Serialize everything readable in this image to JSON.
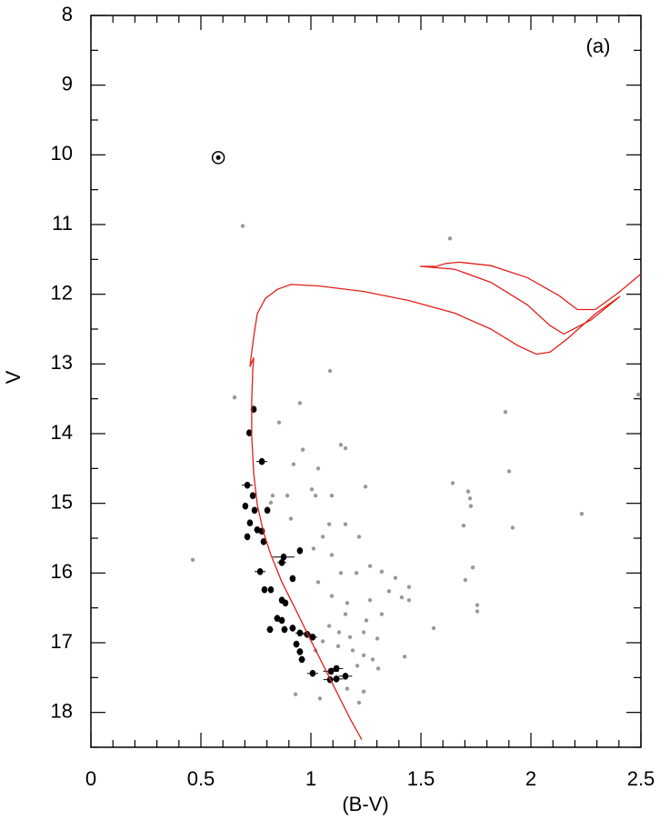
{
  "chart_data": {
    "type": "scatter",
    "xlabel": "(B-V)",
    "ylabel": "V",
    "annotation": "(a)",
    "xlim": [
      0,
      2.5
    ],
    "ylim": [
      18.5,
      8
    ],
    "xticks": [
      0,
      0.5,
      1,
      1.5,
      2,
      2.5
    ],
    "yticks": [
      8,
      9,
      10,
      11,
      12,
      13,
      14,
      15,
      16,
      17,
      18
    ],
    "series": [
      {
        "marker": "dot",
        "color": "#999999",
        "x": [
          0.69,
          1.632,
          1.087,
          0.653,
          0.95,
          2.488,
          1.884,
          0.855,
          1.136,
          1.157,
          0.963,
          1.901,
          1.033,
          1.248,
          0.921,
          1.645,
          1.715,
          1.723,
          1.727,
          1.004,
          0.893,
          1.021,
          0.826,
          1.095,
          0.818,
          1.694,
          1.917,
          2.231,
          0.909,
          1.083,
          1.157,
          1.054,
          1.219,
          0.463,
          1.012,
          1.095,
          1.736,
          1.269,
          1.136,
          1.033,
          1.207,
          1.322,
          1.384,
          1.702,
          1.446,
          1.355,
          1.413,
          1.269,
          1.095,
          1.165,
          1.446,
          1.756,
          1.756,
          1.157,
          1.322,
          1.252,
          1.083,
          1.558,
          1.24,
          1.128,
          1.178,
          1.302,
          1.054,
          1.124,
          1.426,
          1.19,
          1.24,
          1.281,
          1.211,
          1.306,
          1.021,
          1.24,
          1.165,
          1.219,
          1.041,
          0.93
        ],
        "values": [
          11.02,
          11.2,
          13.1,
          13.48,
          13.56,
          13.44,
          13.69,
          13.84,
          14.16,
          14.21,
          14.23,
          14.54,
          14.5,
          14.76,
          14.44,
          14.71,
          14.83,
          14.93,
          15.04,
          14.8,
          14.89,
          14.89,
          14.89,
          14.89,
          14.99,
          15.32,
          15.35,
          15.15,
          15.22,
          15.3,
          15.3,
          15.48,
          15.48,
          15.81,
          15.65,
          15.74,
          15.92,
          15.9,
          16.0,
          16.13,
          16.0,
          15.98,
          16.07,
          16.1,
          16.2,
          16.26,
          16.35,
          16.39,
          16.33,
          16.43,
          16.39,
          16.46,
          16.55,
          16.59,
          16.59,
          16.68,
          16.76,
          16.79,
          16.85,
          16.85,
          16.92,
          16.94,
          16.98,
          17.05,
          17.2,
          17.11,
          17.18,
          17.24,
          17.33,
          17.37,
          17.11,
          17.7,
          17.66,
          17.86,
          17.8,
          17.74
        ]
      },
      {
        "marker": "dot-err",
        "color": "#000000",
        "x": [
          0.74,
          0.72,
          0.777,
          0.711,
          0.736,
          0.702,
          0.744,
          0.802,
          0.723,
          0.756,
          0.777,
          0.711,
          0.785,
          0.95,
          0.876,
          0.868,
          0.769,
          0.917,
          0.789,
          0.818,
          0.868,
          0.884,
          0.847,
          0.868,
          0.814,
          0.88,
          0.917,
          0.95,
          0.983,
          1.008,
          0.934,
          0.95,
          0.959,
          1.008,
          1.091,
          1.116,
          1.157,
          1.087,
          1.116
        ],
        "xerr": [
          0.01,
          0.01,
          0.025,
          0.025,
          0.01,
          0.01,
          0.01,
          0.01,
          0.01,
          0.015,
          0.01,
          0.01,
          0.01,
          0.01,
          0.05,
          0.02,
          0.025,
          0.01,
          0.01,
          0.01,
          0.01,
          0.01,
          0.015,
          0.01,
          0.015,
          0.015,
          0.015,
          0.02,
          0.02,
          0.02,
          0.015,
          0.015,
          0.015,
          0.025,
          0.035,
          0.03,
          0.03,
          0.03,
          0.03
        ],
        "values": [
          13.65,
          13.99,
          14.4,
          14.74,
          14.89,
          15.04,
          15.1,
          15.1,
          15.28,
          15.38,
          15.4,
          15.48,
          15.55,
          15.68,
          15.77,
          15.85,
          15.98,
          16.08,
          16.24,
          16.24,
          16.39,
          16.43,
          16.65,
          16.68,
          16.81,
          16.81,
          16.79,
          16.86,
          16.88,
          16.92,
          17.02,
          17.13,
          17.24,
          17.44,
          17.41,
          17.37,
          17.48,
          17.53,
          17.52
        ]
      },
      {
        "marker": "sun",
        "color": "#000000",
        "x": [
          0.579
        ],
        "values": [
          10.04
        ]
      },
      {
        "marker": "line",
        "color": "#e0201b",
        "x": [
          1.231,
          1.178,
          1.116,
          1.054,
          0.992,
          0.93,
          0.868,
          0.818,
          0.785,
          0.756,
          0.74,
          0.731,
          0.731,
          0.736,
          0.74,
          0.723,
          0.727,
          0.74,
          0.756,
          0.793,
          0.847,
          0.909,
          1.033,
          1.24,
          1.446,
          1.653,
          1.818,
          1.942,
          2.025,
          2.087,
          2.169,
          2.293,
          2.405,
          2.273,
          2.149,
          2.087,
          1.983,
          1.818,
          1.653,
          1.496,
          1.57,
          1.612,
          1.674,
          1.818,
          1.983,
          2.128,
          2.211,
          2.293,
          2.397,
          2.5
        ],
        "values": [
          18.39,
          18.09,
          17.7,
          17.31,
          16.92,
          16.52,
          16.13,
          15.74,
          15.42,
          15.02,
          14.57,
          14.04,
          13.52,
          13.07,
          12.91,
          13.04,
          12.93,
          12.61,
          12.28,
          12.06,
          11.93,
          11.86,
          11.88,
          11.96,
          12.09,
          12.27,
          12.5,
          12.74,
          12.86,
          12.83,
          12.63,
          12.28,
          12.03,
          12.37,
          12.57,
          12.45,
          12.15,
          11.83,
          11.64,
          11.6,
          11.6,
          11.56,
          11.54,
          11.59,
          11.76,
          12.02,
          12.22,
          12.22,
          11.98,
          11.71
        ]
      }
    ]
  }
}
